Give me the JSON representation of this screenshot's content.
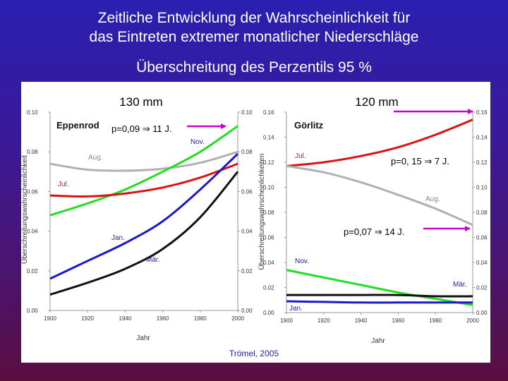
{
  "slide": {
    "title_line1": "Zeitliche Entwicklung der Wahrscheinlichkeit für",
    "title_line2": "das Eintreten extremer monatlicher Niederschläge",
    "subtitle": "Überschreitung des Perzentils 95 %",
    "credit": "Trömel, 2005"
  },
  "colors": {
    "annotation": "#cc00cc",
    "label_text": "#1f1fa0",
    "Jan.": "#1a1acc",
    "Mär.": "#111111",
    "Jul.": "#dd1111",
    "Aug.": "#b0b0b0",
    "Nov.": "#22dd22"
  },
  "chart_data": [
    {
      "type": "line",
      "station": "Eppenrod",
      "threshold": "130 mm",
      "annotation": "p=0,09 ⇒ 11 J.",
      "ylabel": "Überschreitungswahrscheinlichkeit",
      "xlabel": "Jahr",
      "xlim": [
        1900,
        2000
      ],
      "ylim": [
        0,
        0.1
      ],
      "xticks": [
        "1900",
        "1920",
        "1940",
        "1960",
        "1980",
        "2000"
      ],
      "yticks": [
        "0.00",
        "0.02",
        "0.04",
        "0.06",
        "0.08",
        "0.10"
      ],
      "x": [
        1900,
        1920,
        1940,
        1960,
        1980,
        2000
      ],
      "series": [
        {
          "name": "Aug.",
          "values": [
            0.074,
            0.071,
            0.0705,
            0.0715,
            0.0745,
            0.08
          ]
        },
        {
          "name": "Nov.",
          "values": [
            0.048,
            0.054,
            0.061,
            0.07,
            0.08,
            0.093
          ]
        },
        {
          "name": "Jul.",
          "values": [
            0.058,
            0.0575,
            0.059,
            0.062,
            0.067,
            0.074
          ]
        },
        {
          "name": "Jan.",
          "values": [
            0.016,
            0.025,
            0.034,
            0.045,
            0.061,
            0.079
          ]
        },
        {
          "name": "Mär.",
          "values": [
            0.008,
            0.014,
            0.021,
            0.031,
            0.047,
            0.07
          ]
        }
      ]
    },
    {
      "type": "line",
      "station": "Görlitz",
      "threshold": "120 mm",
      "annotation_top": "p=0, 15 ⇒ 7 J.",
      "annotation_bottom": "p=0,07 ⇒ 14 J.",
      "ylabel": "Überschreitungswahrscheinlichkeiten",
      "xlabel": "Jahr",
      "xlim": [
        1900,
        2000
      ],
      "ylim": [
        0,
        0.16
      ],
      "xticks": [
        "1900",
        "1920",
        "1940",
        "1960",
        "1980",
        "2000"
      ],
      "yticks": [
        "0.00",
        "0.02",
        "0.04",
        "0.06",
        "0.08",
        "0.10",
        "0.12",
        "0.14",
        "0.16"
      ],
      "x": [
        1900,
        1920,
        1940,
        1960,
        1980,
        2000
      ],
      "series": [
        {
          "name": "Jul.",
          "values": [
            0.117,
            0.12,
            0.125,
            0.132,
            0.142,
            0.154
          ]
        },
        {
          "name": "Aug.",
          "values": [
            0.117,
            0.112,
            0.104,
            0.094,
            0.083,
            0.07
          ]
        },
        {
          "name": "Nov.",
          "values": [
            0.034,
            0.028,
            0.022,
            0.016,
            0.011,
            0.006
          ]
        },
        {
          "name": "Mär.",
          "values": [
            0.014,
            0.014,
            0.014,
            0.014,
            0.013,
            0.013
          ]
        },
        {
          "name": "Jan.",
          "values": [
            0.009,
            0.0085,
            0.008,
            0.008,
            0.008,
            0.008
          ]
        }
      ]
    }
  ]
}
